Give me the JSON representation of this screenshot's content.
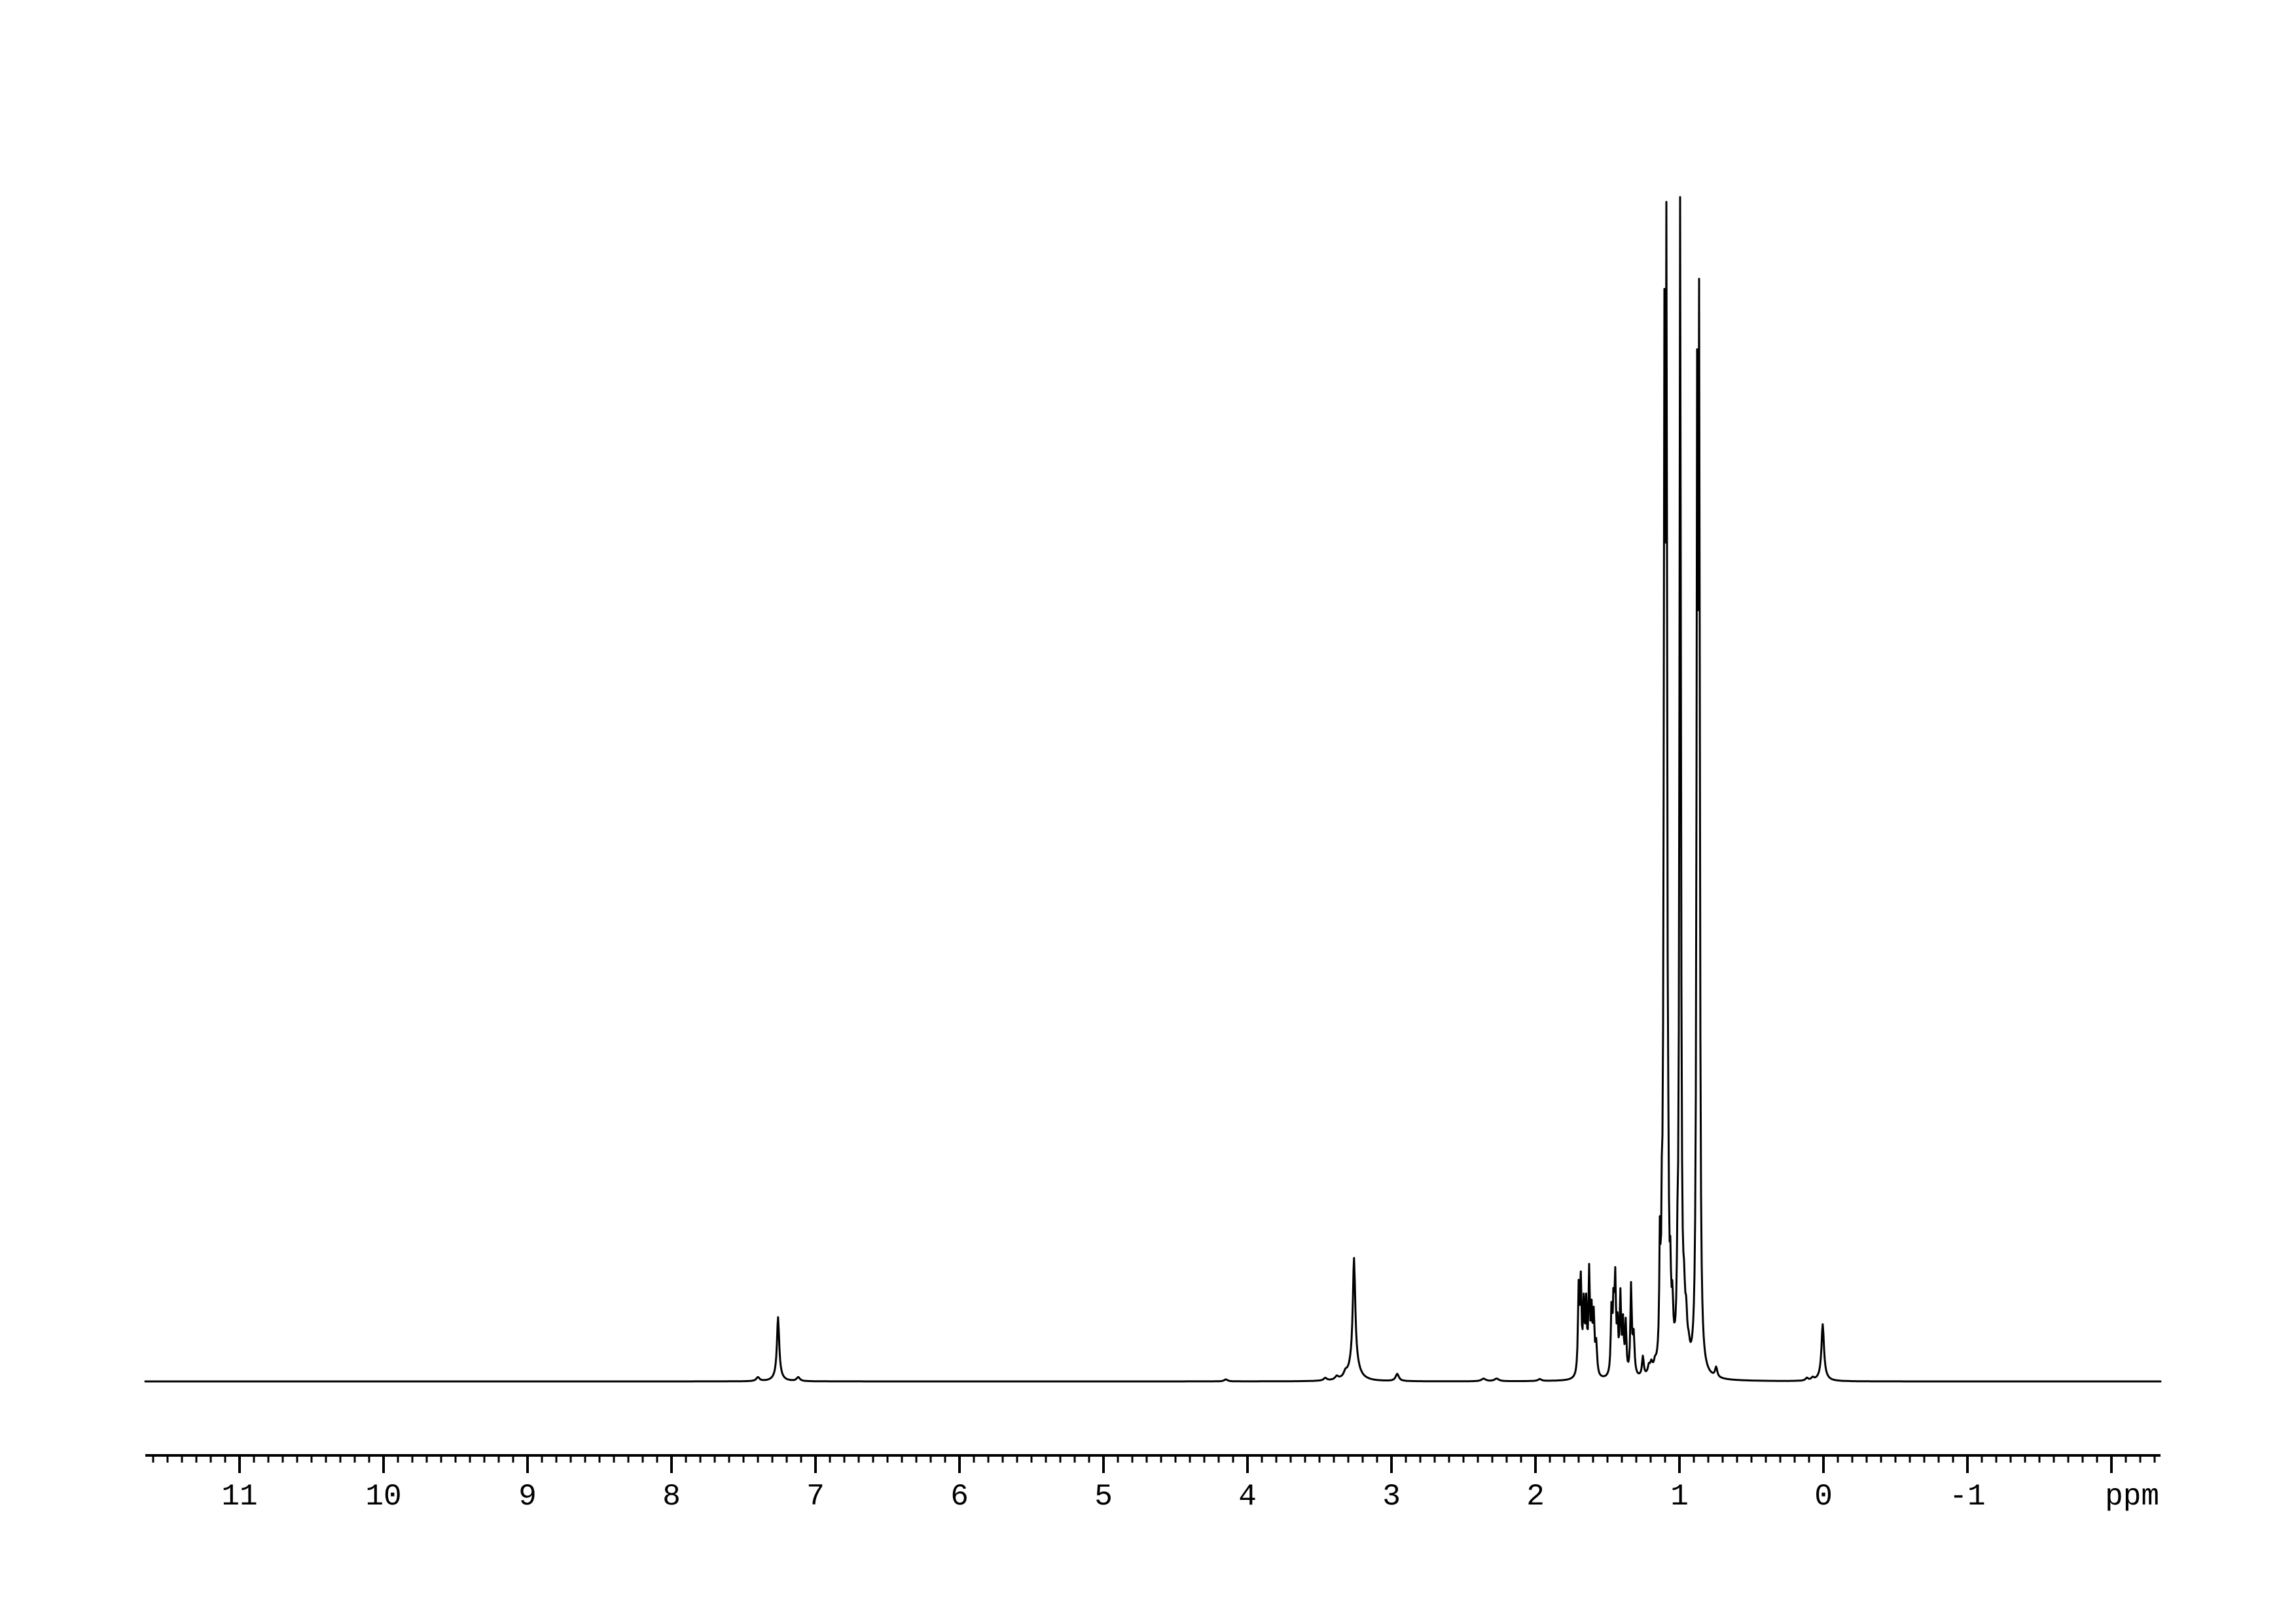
{
  "figure": {
    "kind": "1H NMR spectrum",
    "background_color": "#ffffff",
    "ink_color": "#000000"
  },
  "chart_data": {
    "type": "line",
    "title": "",
    "xlabel": "ppm",
    "ylabel": "",
    "x_axis": {
      "unit": "ppm",
      "direction": "reversed",
      "min": -2.34,
      "max": 11.65,
      "major_tick_interval": 1,
      "minor_tick_interval": 0.1,
      "tick_labels": [
        {
          "ppm": 11,
          "text": "11"
        },
        {
          "ppm": 10,
          "text": "10"
        },
        {
          "ppm": 9,
          "text": "9"
        },
        {
          "ppm": 8,
          "text": "8"
        },
        {
          "ppm": 7,
          "text": "7"
        },
        {
          "ppm": 6,
          "text": "6"
        },
        {
          "ppm": 5,
          "text": "5"
        },
        {
          "ppm": 4,
          "text": "4"
        },
        {
          "ppm": 3,
          "text": "3"
        },
        {
          "ppm": 2,
          "text": "2"
        },
        {
          "ppm": 1,
          "text": "1"
        },
        {
          "ppm": 0,
          "text": "0"
        },
        {
          "ppm": -1,
          "text": "-1"
        }
      ],
      "unlabeled_major_ticks": [
        -2
      ],
      "grid": false,
      "legend": "none"
    },
    "peak_format": [
      "ppm",
      "height_intensity_px",
      "half_width_px"
    ],
    "peaks": [
      [
        7.4,
        6,
        3.0
      ],
      [
        7.26,
        88,
        2.0
      ],
      [
        7.26,
        10,
        6.0
      ],
      [
        7.12,
        6,
        3.0
      ],
      [
        4.15,
        3,
        3.0
      ],
      [
        3.46,
        4,
        3.0
      ],
      [
        3.38,
        5,
        3.0
      ],
      [
        3.32,
        7,
        3.0
      ],
      [
        3.26,
        158,
        2.2
      ],
      [
        3.26,
        30,
        8.0
      ],
      [
        2.96,
        11,
        3.0
      ],
      [
        2.36,
        4,
        4.0
      ],
      [
        2.27,
        4,
        4.0
      ],
      [
        1.97,
        3,
        3.0
      ],
      [
        1.7,
        130,
        1.3
      ],
      [
        1.685,
        136,
        1.3
      ],
      [
        1.665,
        102,
        1.3
      ],
      [
        1.648,
        102,
        1.3
      ],
      [
        1.627,
        153,
        1.3
      ],
      [
        1.61,
        88,
        1.3
      ],
      [
        1.595,
        85,
        1.3
      ],
      [
        1.578,
        48,
        1.6
      ],
      [
        1.472,
        97,
        1.3
      ],
      [
        1.458,
        98,
        1.3
      ],
      [
        1.446,
        135,
        1.3
      ],
      [
        1.43,
        68,
        1.3
      ],
      [
        1.41,
        118,
        1.3
      ],
      [
        1.392,
        75,
        1.3
      ],
      [
        1.373,
        78,
        1.3
      ],
      [
        1.336,
        136,
        1.3
      ],
      [
        1.318,
        60,
        1.6
      ],
      [
        1.254,
        30,
        1.6
      ],
      [
        1.212,
        12,
        2.0
      ],
      [
        1.195,
        14,
        2.0
      ],
      [
        1.17,
        10,
        2.0
      ],
      [
        1.136,
        167,
        1.0
      ],
      [
        1.122,
        155,
        1.0
      ],
      [
        1.11,
        143,
        1.0
      ],
      [
        1.1035,
        1440,
        1.2
      ],
      [
        1.09,
        1580,
        1.2
      ],
      [
        1.077,
        103,
        1.0
      ],
      [
        1.063,
        90,
        1.0
      ],
      [
        1.049,
        72,
        1.4
      ],
      [
        1.014,
        90,
        1.0
      ],
      [
        0.995,
        1789,
        1.3
      ],
      [
        0.968,
        72,
        1.8
      ],
      [
        0.953,
        55,
        1.8
      ],
      [
        0.936,
        20,
        2.0
      ],
      [
        0.877,
        1380,
        1.2
      ],
      [
        0.863,
        1500,
        1.2
      ],
      [
        0.745,
        15,
        2.0
      ],
      [
        0.115,
        4,
        2.5
      ],
      [
        0.075,
        4,
        2.5
      ],
      [
        0.005,
        78,
        2.2
      ],
      [
        0.005,
        9,
        6.0
      ]
    ]
  }
}
